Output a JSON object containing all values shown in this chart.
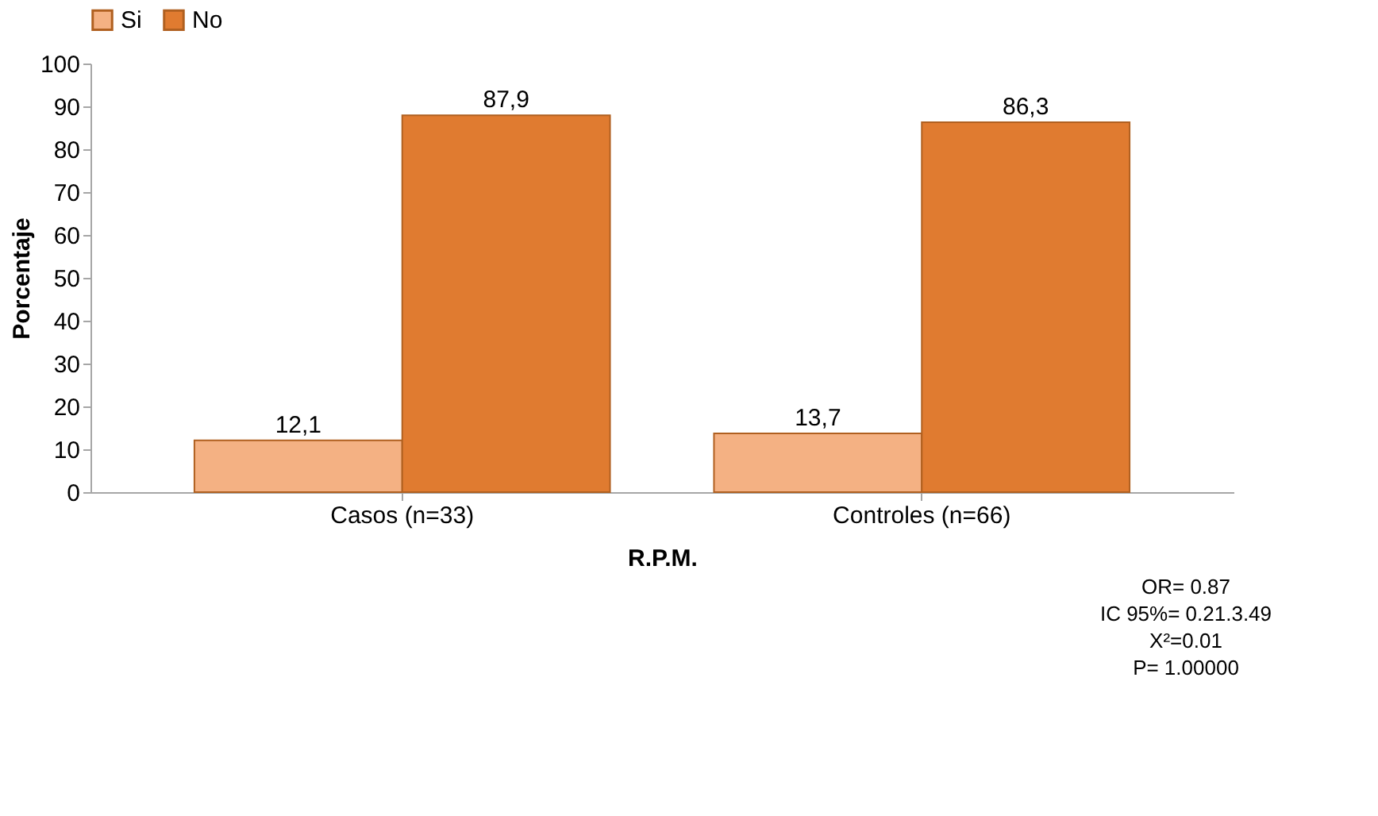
{
  "chart_data": {
    "type": "bar",
    "xlabel": "R.P.M.",
    "ylabel": "Porcentaje",
    "categories": [
      "Casos (n=33)",
      "Controles (n=66)"
    ],
    "series": [
      {
        "name": "Si",
        "color": "#f4b183",
        "values": [
          12.1,
          13.7
        ],
        "value_labels": [
          "12,1",
          "13,7"
        ]
      },
      {
        "name": "No",
        "color": "#e07b30",
        "values": [
          87.9,
          86.3
        ],
        "value_labels": [
          "87,9",
          "86,3"
        ]
      }
    ],
    "ylim": [
      0,
      100
    ],
    "yticks": [
      0,
      10,
      20,
      30,
      40,
      50,
      60,
      70,
      80,
      90,
      100
    ],
    "grid": false,
    "legend": "top",
    "annotations": [
      "OR= 0.87",
      "IC 95%= 0.21.3.49",
      "X²=0.01",
      "P= 1.00000"
    ]
  }
}
